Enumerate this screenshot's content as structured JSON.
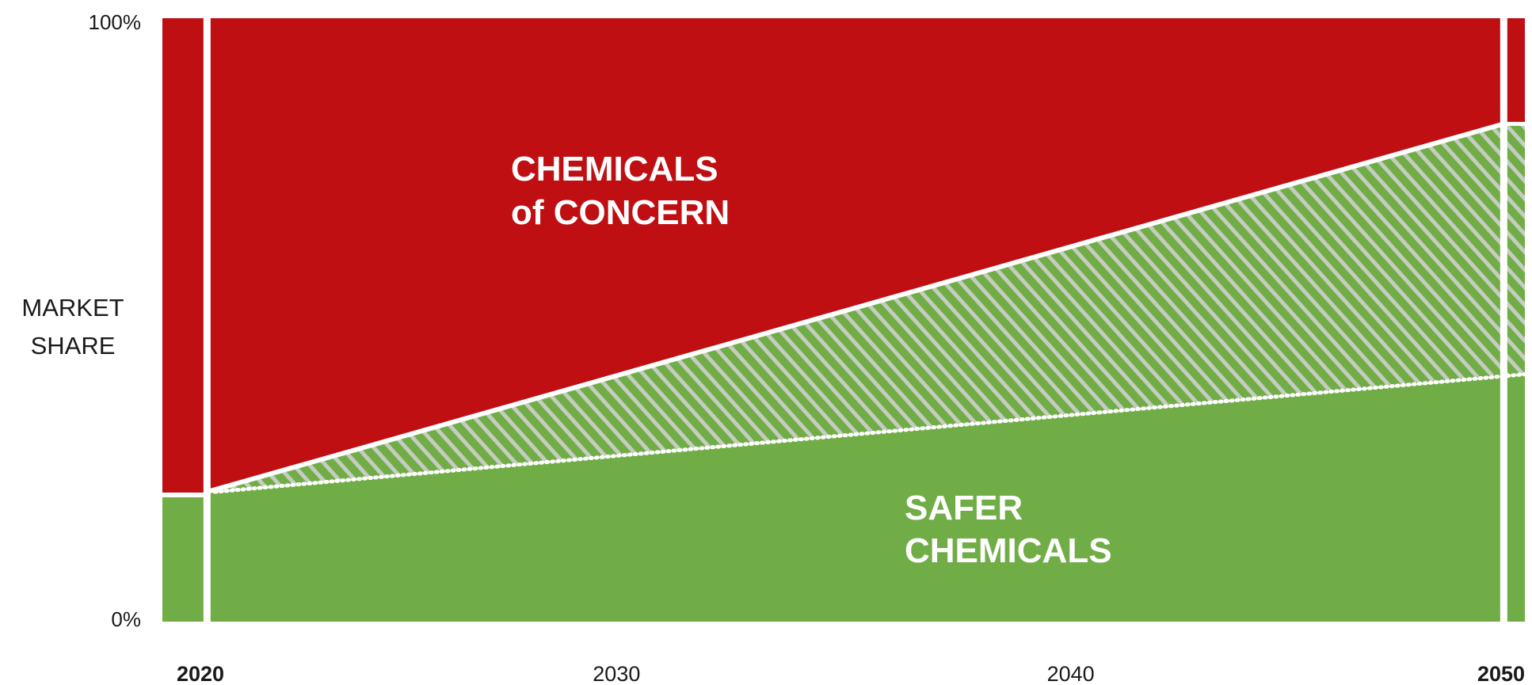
{
  "chart_data": {
    "type": "area",
    "title": "",
    "ylabel": "MARKET SHARE",
    "xlabel": "",
    "ylim": [
      0,
      100
    ],
    "y_ticks": [
      {
        "value": 0,
        "label": "0%"
      },
      {
        "value": 100,
        "label": "100%"
      }
    ],
    "x_ticks": [
      {
        "value": 2020,
        "label": "2020",
        "bold": true
      },
      {
        "value": 2030,
        "label": "2030",
        "bold": false
      },
      {
        "value": 2040,
        "label": "2040",
        "bold": false
      },
      {
        "value": 2050,
        "label": "2050",
        "bold": true
      }
    ],
    "x_range": [
      2020,
      2050
    ],
    "projection_start": 2021,
    "projection_end": 2049.5,
    "series": [
      {
        "name": "SAFER CHEMICALS",
        "color": "#70ad47",
        "pattern": "solid",
        "points": [
          [
            2020,
            21
          ],
          [
            2021,
            21.5
          ],
          [
            2049.5,
            41
          ],
          [
            2050,
            41
          ]
        ]
      },
      {
        "name": "",
        "color": "#70ad47",
        "pattern": "hatched",
        "lower_points": [
          [
            2021,
            21.5
          ],
          [
            2049.5,
            41
          ]
        ],
        "upper_points": [
          [
            2021,
            21.5
          ],
          [
            2049.5,
            82.5
          ]
        ]
      },
      {
        "name": "CHEMICALS of CONCERN",
        "color": "#c00f12",
        "pattern": "solid",
        "points": [
          [
            2020,
            100
          ],
          [
            2050,
            100
          ]
        ]
      }
    ],
    "boundaries": {
      "start_2020_share": 21,
      "end_2050_upper": 82.5,
      "end_2050_lower": 41
    },
    "region_labels": {
      "concern": [
        "CHEMICALS",
        "of CONCERN"
      ],
      "safer": [
        "SAFER",
        "CHEMICALS"
      ]
    }
  },
  "colors": {
    "red": "#c00f12",
    "green": "#70ad47",
    "hatch_stripe": "#c6ccc2",
    "divider": "#ffffff"
  }
}
